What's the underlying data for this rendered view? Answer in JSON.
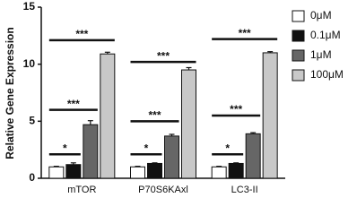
{
  "chart_data": {
    "type": "bar",
    "y_label": "Relative Gene Expression",
    "categories": [
      "mTOR",
      "P70S6KAxl",
      "LC3-II"
    ],
    "series": [
      {
        "name": "0μM",
        "color": "#ffffff",
        "values": [
          1.0,
          1.0,
          1.0
        ],
        "errors": [
          0.05,
          0.05,
          0.05
        ]
      },
      {
        "name": "0.1μM",
        "color": "#111111",
        "values": [
          1.2,
          1.3,
          1.3
        ],
        "errors": [
          0.15,
          0.05,
          0.05
        ]
      },
      {
        "name": "1μM",
        "color": "#666666",
        "values": [
          4.7,
          3.7,
          3.9
        ],
        "errors": [
          0.35,
          0.15,
          0.1
        ]
      },
      {
        "name": "100μM",
        "color": "#c8c8c8",
        "values": [
          10.9,
          9.5,
          11.0
        ],
        "errors": [
          0.15,
          0.2,
          0.1
        ]
      }
    ],
    "brackets": [
      [
        {
          "label": "*",
          "y": 2.1
        },
        {
          "label": "***",
          "y": 6.0
        },
        {
          "label": "***",
          "y": 12.1
        }
      ],
      [
        {
          "label": "*",
          "y": 2.1
        },
        {
          "label": "***",
          "y": 5.0
        },
        {
          "label": "***",
          "y": 10.2
        }
      ],
      [
        {
          "label": "*",
          "y": 2.1
        },
        {
          "label": "***",
          "y": 5.5
        },
        {
          "label": "***",
          "y": 12.2
        }
      ]
    ],
    "ylim": [
      0,
      15
    ],
    "yticks": [
      0,
      5,
      10,
      15
    ]
  }
}
